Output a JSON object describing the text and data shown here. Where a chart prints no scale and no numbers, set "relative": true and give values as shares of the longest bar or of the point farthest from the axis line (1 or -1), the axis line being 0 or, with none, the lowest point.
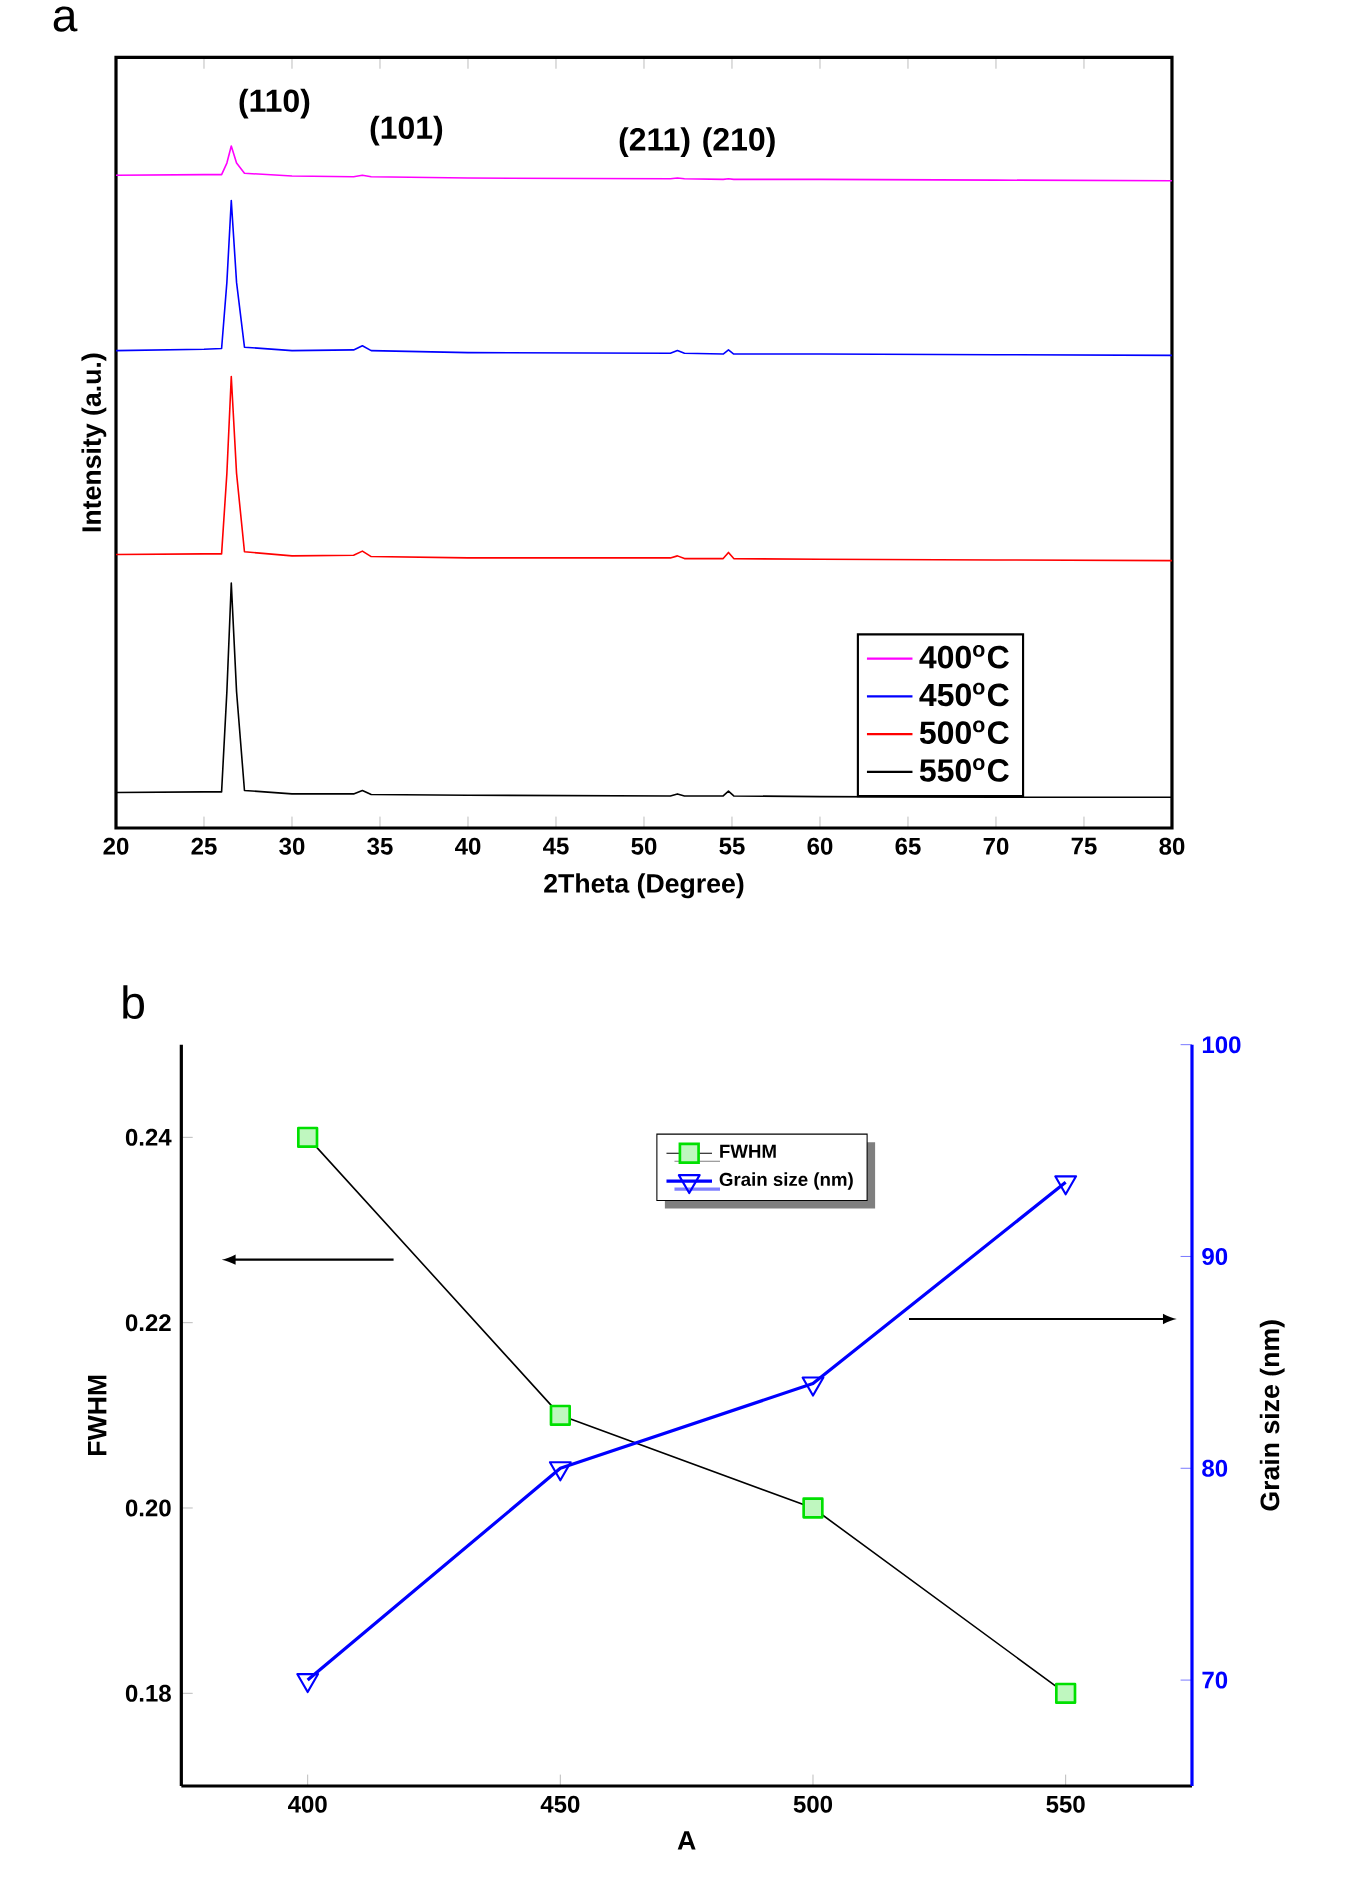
{
  "chart_data": [
    {
      "type": "line",
      "title": "a",
      "xlabel": "2Theta (Degree)",
      "ylabel": "Intensity (a.u.)",
      "relative": true,
      "legend": "bottom right",
      "x": [
        20,
        25,
        26.0,
        26.3,
        26.55,
        26.85,
        27.3,
        30,
        33.5,
        34.0,
        34.5,
        40,
        51.5,
        51.9,
        52.3,
        54.5,
        54.8,
        55.1,
        60,
        70,
        80
      ],
      "xlim": [
        20,
        80
      ],
      "xticks": [
        20,
        25,
        30,
        35,
        40,
        45,
        50,
        55,
        60,
        65,
        70,
        75,
        80
      ],
      "series": [
        {
          "name": "400$^{o}$C",
          "color": "#ff00ff",
          "values": [
            0.957,
            0.958,
            0.958,
            0.975,
            1.0,
            0.975,
            0.96,
            0.956,
            0.955,
            0.957,
            0.955,
            0.953,
            0.952,
            0.953,
            0.952,
            0.951,
            0.952,
            0.951,
            0.951,
            0.95,
            0.949
          ]
        },
        {
          "name": "450$^{o}$C",
          "color": "#0000ff",
          "values": [
            0.7,
            0.702,
            0.703,
            0.8,
            0.92,
            0.8,
            0.705,
            0.7,
            0.701,
            0.707,
            0.7,
            0.697,
            0.696,
            0.7,
            0.696,
            0.695,
            0.701,
            0.695,
            0.695,
            0.694,
            0.693
          ]
        },
        {
          "name": "500$^{o}$C",
          "color": "#ff0000",
          "values": [
            0.401,
            0.402,
            0.402,
            0.52,
            0.662,
            0.52,
            0.405,
            0.399,
            0.4,
            0.406,
            0.398,
            0.396,
            0.396,
            0.399,
            0.395,
            0.395,
            0.404,
            0.395,
            0.394,
            0.393,
            0.392
          ]
        },
        {
          "name": "550$^{o}$C",
          "color": "#000000",
          "values": [
            0.052,
            0.053,
            0.053,
            0.2,
            0.359,
            0.2,
            0.055,
            0.05,
            0.05,
            0.055,
            0.049,
            0.048,
            0.047,
            0.05,
            0.047,
            0.047,
            0.054,
            0.047,
            0.046,
            0.045,
            0.045
          ]
        }
      ],
      "annotations": [
        "(110)",
        "(101)",
        "(211)",
        "(210)"
      ]
    },
    {
      "type": "line",
      "title": "b",
      "xlabel": "A",
      "ylabel": "FWHM",
      "y2label": "Grain size (nm)",
      "legend": "top",
      "x": [
        400,
        450,
        500,
        550
      ],
      "xlim": [
        375,
        575
      ],
      "xticks": [
        400,
        450,
        500,
        550
      ],
      "ylim": [
        0.17,
        0.25
      ],
      "yticks": [
        0.18,
        {
          "value": 0.2,
          "label": "0.20"
        },
        0.22,
        0.24
      ],
      "y2lim": [
        65,
        100
      ],
      "y2ticks": [
        70,
        80,
        90,
        100
      ],
      "series": [
        {
          "name": "FWHM",
          "color": "#00e000",
          "marker": "square",
          "values": [
            0.24,
            0.21,
            0.2,
            0.18
          ]
        },
        {
          "name": "Grain size (nm)",
          "color": "#0000ff",
          "marker": "triangle",
          "axis": "y2",
          "values": [
            70,
            80,
            84,
            93.5
          ]
        }
      ]
    }
  ]
}
